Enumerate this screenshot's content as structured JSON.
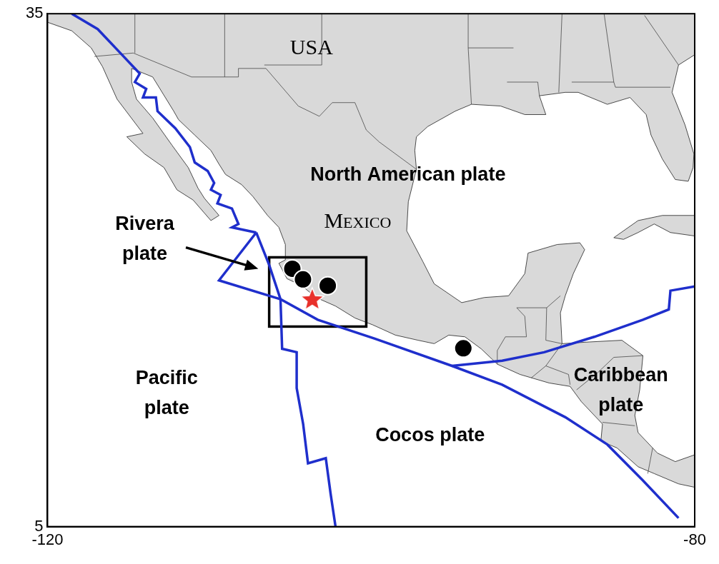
{
  "chart_data": {
    "type": "map",
    "xlim": [
      -120,
      -80
    ],
    "ylim": [
      5,
      35
    ],
    "xticks": [
      -120,
      -80
    ],
    "yticks": [
      5,
      35
    ],
    "grid": false,
    "land": {
      "color": "#d9d9d9",
      "polygons": [
        [
          [
            -120,
            35
          ],
          [
            -120,
            34.5
          ],
          [
            -118.5,
            34.0
          ],
          [
            -117.3,
            33.0
          ],
          [
            -116.6,
            31.9
          ],
          [
            -115.7,
            30.0
          ],
          [
            -114.1,
            28.0
          ],
          [
            -115.1,
            27.8
          ],
          [
            -114.0,
            26.8
          ],
          [
            -112.8,
            26.0
          ],
          [
            -112.0,
            24.7
          ],
          [
            -111.0,
            24.1
          ],
          [
            -109.9,
            22.9
          ],
          [
            -109.4,
            23.2
          ],
          [
            -110.3,
            24.2
          ],
          [
            -110.7,
            24.8
          ],
          [
            -111.3,
            26.0
          ],
          [
            -112.3,
            27.3
          ],
          [
            -113.5,
            28.9
          ],
          [
            -114.5,
            30.0
          ],
          [
            -114.8,
            31.0
          ],
          [
            -114.8,
            31.8
          ],
          [
            -113.5,
            31.3
          ],
          [
            -112.2,
            29.3
          ],
          [
            -111.9,
            28.8
          ],
          [
            -110.9,
            27.9
          ],
          [
            -109.9,
            27.0
          ],
          [
            -109.4,
            26.2
          ],
          [
            -109.0,
            25.6
          ],
          [
            -108.0,
            25.0
          ],
          [
            -107.3,
            24.3
          ],
          [
            -106.4,
            23.2
          ],
          [
            -105.7,
            22.5
          ],
          [
            -105.3,
            21.5
          ],
          [
            -105.3,
            20.6
          ],
          [
            -105.7,
            20.4
          ],
          [
            -105.2,
            19.5
          ],
          [
            -104.3,
            19.1
          ],
          [
            -103.4,
            18.4
          ],
          [
            -102.2,
            17.9
          ],
          [
            -101.0,
            17.2
          ],
          [
            -99.9,
            16.8
          ],
          [
            -98.5,
            16.2
          ],
          [
            -97.1,
            15.9
          ],
          [
            -96.1,
            15.7
          ],
          [
            -95.2,
            16.2
          ],
          [
            -94.2,
            16.1
          ],
          [
            -93.2,
            15.4
          ],
          [
            -92.2,
            14.5
          ],
          [
            -90.8,
            13.9
          ],
          [
            -89.0,
            13.4
          ],
          [
            -87.7,
            13.2
          ],
          [
            -87.0,
            12.3
          ],
          [
            -85.7,
            11.0
          ],
          [
            -85.8,
            10.0
          ],
          [
            -84.8,
            9.6
          ],
          [
            -83.5,
            8.5
          ],
          [
            -82.5,
            8.1
          ],
          [
            -81.0,
            7.5
          ],
          [
            -80.0,
            7.3
          ],
          [
            -80.0,
            9.2
          ],
          [
            -81.2,
            8.8
          ],
          [
            -82.3,
            9.3
          ],
          [
            -83.5,
            10.5
          ],
          [
            -83.7,
            11.5
          ],
          [
            -83.4,
            13.0
          ],
          [
            -83.2,
            15.0
          ],
          [
            -84.5,
            15.9
          ],
          [
            -86.5,
            15.8
          ],
          [
            -88.2,
            15.7
          ],
          [
            -88.3,
            17.5
          ],
          [
            -88.0,
            18.5
          ],
          [
            -87.5,
            19.8
          ],
          [
            -86.8,
            21.2
          ],
          [
            -87.1,
            21.6
          ],
          [
            -88.5,
            21.5
          ],
          [
            -90.3,
            21.0
          ],
          [
            -90.5,
            19.8
          ],
          [
            -91.5,
            18.5
          ],
          [
            -93.0,
            18.4
          ],
          [
            -94.4,
            18.1
          ],
          [
            -96.1,
            19.2
          ],
          [
            -96.8,
            20.5
          ],
          [
            -97.8,
            22.3
          ],
          [
            -97.7,
            24.0
          ],
          [
            -97.2,
            25.9
          ],
          [
            -97.3,
            27.0
          ],
          [
            -97.2,
            27.8
          ],
          [
            -96.5,
            28.4
          ],
          [
            -94.8,
            29.3
          ],
          [
            -93.8,
            29.7
          ],
          [
            -92.0,
            29.6
          ],
          [
            -90.5,
            29.1
          ],
          [
            -89.2,
            29.1
          ],
          [
            -89.6,
            30.2
          ],
          [
            -88.0,
            30.4
          ],
          [
            -87.2,
            30.4
          ],
          [
            -85.4,
            29.7
          ],
          [
            -84.0,
            30.1
          ],
          [
            -83.0,
            29.1
          ],
          [
            -82.7,
            27.9
          ],
          [
            -82.0,
            26.5
          ],
          [
            -81.2,
            25.3
          ],
          [
            -80.4,
            25.2
          ],
          [
            -80.1,
            26.0
          ],
          [
            -80.05,
            26.8
          ],
          [
            -80.6,
            28.5
          ],
          [
            -81.4,
            30.4
          ],
          [
            -81.0,
            32.0
          ],
          [
            -80.0,
            32.6
          ],
          [
            -80,
            35
          ]
        ],
        [
          [
            -85.0,
            21.9
          ],
          [
            -83.5,
            22.9
          ],
          [
            -82.0,
            23.2
          ],
          [
            -80.0,
            23.2
          ],
          [
            -80.0,
            22.0
          ],
          [
            -81.5,
            22.2
          ],
          [
            -82.5,
            22.7
          ],
          [
            -83.5,
            22.2
          ],
          [
            -84.4,
            21.8
          ]
        ]
      ]
    },
    "borders": [
      [
        [
          -117.1,
          32.5
        ],
        [
          -114.7,
          32.7
        ],
        [
          -111.1,
          31.3
        ],
        [
          -108.2,
          31.3
        ],
        [
          -108.2,
          31.8
        ],
        [
          -106.5,
          31.8
        ],
        [
          -104.5,
          29.6
        ],
        [
          -103.2,
          29.0
        ],
        [
          -102.4,
          29.8
        ],
        [
          -101.0,
          29.8
        ],
        [
          -100.3,
          28.2
        ],
        [
          -99.5,
          27.5
        ],
        [
          -97.2,
          25.9
        ]
      ],
      [
        [
          -114.6,
          32.7
        ],
        [
          -114.6,
          35
        ]
      ],
      [
        [
          -109.05,
          31.3
        ],
        [
          -109.05,
          35
        ]
      ],
      [
        [
          -106.6,
          32.0
        ],
        [
          -103.05,
          32.0
        ],
        [
          -103.05,
          35
        ]
      ],
      [
        [
          -93.8,
          29.7
        ],
        [
          -94.0,
          33.0
        ],
        [
          -94.0,
          35
        ]
      ],
      [
        [
          -94.0,
          33.0
        ],
        [
          -91.2,
          33.0
        ]
      ],
      [
        [
          -91.6,
          31.0
        ],
        [
          -89.7,
          31.0
        ],
        [
          -89.6,
          30.2
        ]
      ],
      [
        [
          -88.4,
          30.4
        ],
        [
          -88.2,
          35
        ]
      ],
      [
        [
          -87.6,
          31.0
        ],
        [
          -85.0,
          31.0
        ],
        [
          -85.6,
          35
        ]
      ],
      [
        [
          -85.0,
          31.0
        ],
        [
          -84.9,
          30.7
        ],
        [
          -81.5,
          30.7
        ]
      ],
      [
        [
          -81.0,
          32.0
        ],
        [
          -83.1,
          34.9
        ]
      ],
      [
        [
          -92.2,
          14.5
        ],
        [
          -92.2,
          15.3
        ],
        [
          -91.7,
          16.1
        ],
        [
          -90.4,
          16.1
        ],
        [
          -90.5,
          17.3
        ],
        [
          -91.0,
          17.8
        ],
        [
          -89.15,
          17.8
        ],
        [
          -88.3,
          18.5
        ]
      ],
      [
        [
          -89.15,
          17.8
        ],
        [
          -89.2,
          15.9
        ],
        [
          -88.2,
          15.7
        ]
      ],
      [
        [
          -88.2,
          15.7
        ],
        [
          -89.2,
          14.4
        ],
        [
          -90.1,
          13.7
        ]
      ],
      [
        [
          -89.2,
          14.4
        ],
        [
          -87.8,
          13.9
        ],
        [
          -87.7,
          13.3
        ]
      ],
      [
        [
          -87.3,
          13.0
        ],
        [
          -86.0,
          14.0
        ],
        [
          -85.0,
          14.9
        ],
        [
          -83.2,
          15.0
        ]
      ],
      [
        [
          -85.7,
          11.1
        ],
        [
          -83.7,
          10.9
        ]
      ],
      [
        [
          -82.9,
          8.1
        ],
        [
          -82.6,
          9.6
        ]
      ]
    ],
    "plate_boundaries": {
      "color": "#1f2fcc",
      "lines": [
        [
          [
            -118.5,
            35.0
          ],
          [
            -116.9,
            34.1
          ],
          [
            -115.4,
            32.6
          ],
          [
            -114.3,
            31.5
          ],
          [
            -114.6,
            31.0
          ],
          [
            -113.9,
            30.6
          ],
          [
            -114.1,
            30.1
          ],
          [
            -113.3,
            30.1
          ],
          [
            -113.2,
            29.3
          ],
          [
            -112.1,
            28.3
          ],
          [
            -111.2,
            27.2
          ],
          [
            -110.9,
            26.3
          ],
          [
            -110.1,
            25.8
          ],
          [
            -109.7,
            25.1
          ],
          [
            -109.9,
            24.7
          ],
          [
            -109.3,
            24.4
          ],
          [
            -109.5,
            23.9
          ],
          [
            -108.6,
            23.6
          ],
          [
            -108.2,
            22.7
          ],
          [
            -108.6,
            22.5
          ],
          [
            -107.1,
            22.2
          ]
        ],
        [
          [
            -107.1,
            22.2
          ],
          [
            -106.3,
            20.3
          ],
          [
            -105.6,
            18.3
          ],
          [
            -103.3,
            17.1
          ],
          [
            -99.8,
            16.0
          ],
          [
            -95.0,
            14.4
          ],
          [
            -91.9,
            13.3
          ],
          [
            -88.0,
            11.4
          ],
          [
            -85.4,
            9.8
          ],
          [
            -83.2,
            7.7
          ],
          [
            -81.0,
            5.5
          ]
        ],
        [
          [
            -107.1,
            22.2
          ],
          [
            -109.4,
            19.4
          ],
          [
            -105.6,
            18.3
          ]
        ],
        [
          [
            -105.6,
            18.3
          ],
          [
            -105.5,
            15.4
          ],
          [
            -104.6,
            15.2
          ],
          [
            -104.6,
            13.1
          ],
          [
            -104.2,
            11.0
          ],
          [
            -103.9,
            8.7
          ],
          [
            -102.8,
            9.0
          ],
          [
            -102.5,
            6.9
          ],
          [
            -102.2,
            5.0
          ]
        ],
        [
          [
            -95.0,
            14.4
          ],
          [
            -91.9,
            14.7
          ],
          [
            -89.3,
            15.2
          ],
          [
            -86.2,
            16.1
          ],
          [
            -83.2,
            17.1
          ],
          [
            -81.6,
            17.7
          ],
          [
            -81.5,
            18.8
          ],
          [
            -80.0,
            19.05
          ]
        ]
      ]
    },
    "earthquakes": {
      "color": "#000000",
      "marker": "circle",
      "x": [
        -104.87,
        -104.21,
        -102.68,
        -94.3
      ],
      "y": [
        20.08,
        19.46,
        19.09,
        15.43
      ]
    },
    "epicenter": {
      "color": "#e8302a",
      "marker": "star",
      "x": [
        -103.64
      ],
      "y": [
        18.3
      ]
    },
    "box": {
      "xlim": [
        -106.3,
        -100.3
      ],
      "ylim": [
        16.7,
        20.75
      ]
    },
    "country_labels": [
      "USA",
      "Mexico"
    ],
    "plate_labels": [
      "North American plate",
      "Rivera\nplate",
      "Pacific\nplate",
      "Cocos plate",
      "Caribbean\nplate"
    ]
  }
}
